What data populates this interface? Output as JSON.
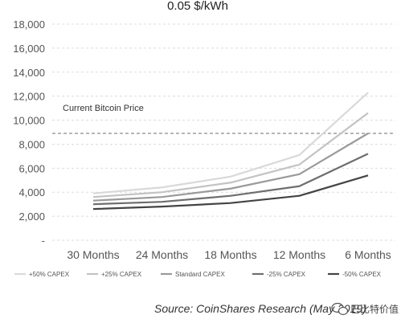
{
  "chart_data": {
    "type": "line",
    "title": "0.05 $/kWh",
    "categories": [
      "30 Months",
      "24 Months",
      "18 Months",
      "12 Months",
      "6 Months"
    ],
    "ylim": [
      0,
      18000
    ],
    "yticks": [
      "-",
      "2,000",
      "4,000",
      "6,000",
      "8,000",
      "10,000",
      "12,000",
      "14,000",
      "16,000",
      "18,000"
    ],
    "grid": true,
    "legend_position": "bottom",
    "series": [
      {
        "name": "+50% CAPEX",
        "color": "#d9d9d9",
        "values": [
          3900,
          4400,
          5300,
          7100,
          12300
        ]
      },
      {
        "name": "+25% CAPEX",
        "color": "#c3c3c3",
        "values": [
          3600,
          4000,
          4800,
          6300,
          10600
        ]
      },
      {
        "name": "Standard CAPEX",
        "color": "#9a9a9a",
        "values": [
          3300,
          3600,
          4300,
          5500,
          8900
        ]
      },
      {
        "name": "-25% CAPEX",
        "color": "#6e6e6e",
        "values": [
          3000,
          3200,
          3700,
          4500,
          7200
        ]
      },
      {
        "name": "-50% CAPEX",
        "color": "#444444",
        "values": [
          2600,
          2800,
          3100,
          3700,
          5400
        ]
      }
    ],
    "reference_line": {
      "label": "Current Bitcoin Price",
      "value": 8900
    },
    "source": "Source: CoinShares Research (May 2019)",
    "watermark": "巴比特价值"
  }
}
